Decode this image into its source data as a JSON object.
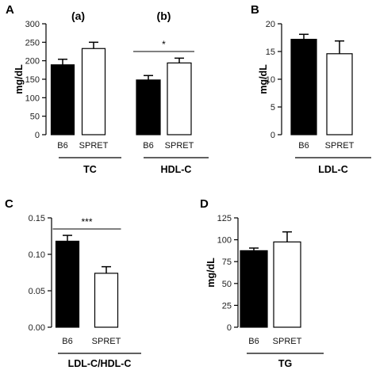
{
  "chart_data": [
    {
      "panel": "A",
      "type": "bar",
      "ylabel": "mg/dL",
      "ylim": [
        0,
        300
      ],
      "yticks": [
        "0",
        "50",
        "100",
        "150",
        "200",
        "250",
        "300"
      ],
      "colors": {
        "B6": "#000000",
        "SPRET": "#ffffff"
      },
      "groups": [
        {
          "label": "TC",
          "subtitle": "(a)",
          "significance": "",
          "categories": [
            "B6",
            "SPRET"
          ],
          "values": [
            189,
            233
          ],
          "errors": [
            15,
            17
          ]
        },
        {
          "label": "HDL-C",
          "subtitle": "(b)",
          "significance": "*",
          "categories": [
            "B6",
            "SPRET"
          ],
          "values": [
            148,
            194
          ],
          "errors": [
            12,
            13
          ]
        }
      ]
    },
    {
      "panel": "B",
      "type": "bar",
      "ylabel": "mg/dL",
      "ylim": [
        0,
        20
      ],
      "yticks": [
        "0",
        "5",
        "10",
        "15",
        "20"
      ],
      "colors": {
        "B6": "#000000",
        "SPRET": "#ffffff"
      },
      "groups": [
        {
          "label": "LDL-C",
          "subtitle": "",
          "significance": "",
          "categories": [
            "B6",
            "SPRET"
          ],
          "values": [
            17.2,
            14.6
          ],
          "errors": [
            0.9,
            2.3
          ]
        }
      ]
    },
    {
      "panel": "C",
      "type": "bar",
      "ylabel": "",
      "ylim": [
        0,
        0.15
      ],
      "yticks": [
        "0.00",
        "0.05",
        "0.10",
        "0.15"
      ],
      "colors": {
        "B6": "#000000",
        "SPRET": "#ffffff"
      },
      "groups": [
        {
          "label": "LDL-C/HDL-C",
          "subtitle": "",
          "significance": "***",
          "categories": [
            "B6",
            "SPRET"
          ],
          "values": [
            0.118,
            0.074
          ],
          "errors": [
            0.008,
            0.009
          ]
        }
      ]
    },
    {
      "panel": "D",
      "type": "bar",
      "ylabel": "mg/dL",
      "ylim": [
        0,
        125
      ],
      "yticks": [
        "0",
        "25",
        "50",
        "75",
        "100",
        "125"
      ],
      "colors": {
        "B6": "#000000",
        "SPRET": "#ffffff"
      },
      "groups": [
        {
          "label": "TG",
          "subtitle": "",
          "significance": "",
          "categories": [
            "B6",
            "SPRET"
          ],
          "values": [
            87.5,
            97.5
          ],
          "errors": [
            3,
            11.5
          ]
        }
      ]
    }
  ]
}
